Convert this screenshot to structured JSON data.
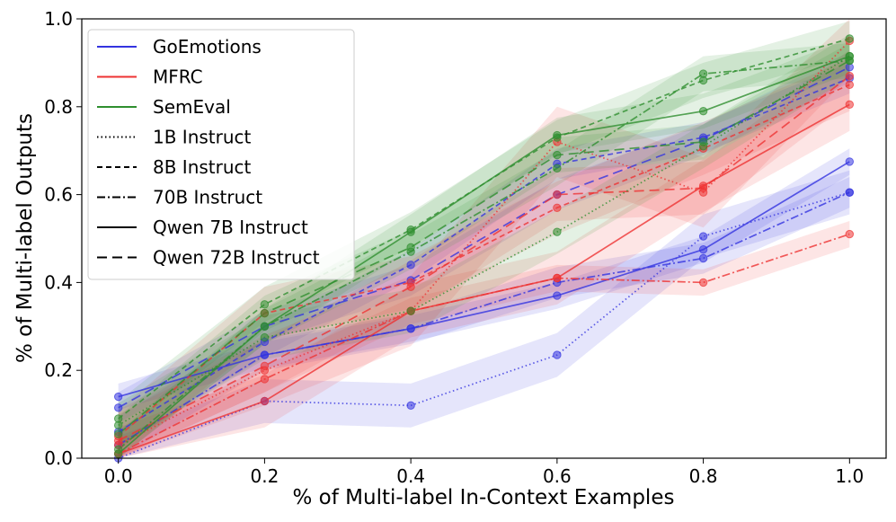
{
  "chart_data": {
    "type": "line",
    "xlabel": "% of Multi-label In-Context Examples",
    "ylabel": "% of Multi-label Outputs",
    "xlim": [
      -0.05,
      1.05
    ],
    "ylim": [
      0.0,
      1.0
    ],
    "xticks": [
      0.0,
      0.2,
      0.4,
      0.6,
      0.8,
      1.0
    ],
    "xtick_labels": [
      "0.0",
      "0.2",
      "0.4",
      "0.6",
      "0.8",
      "1.0"
    ],
    "yticks": [
      0.0,
      0.2,
      0.4,
      0.6,
      0.8,
      1.0
    ],
    "ytick_labels": [
      "0.0",
      "0.2",
      "0.4",
      "0.6",
      "0.8",
      "1.0"
    ],
    "grid": false,
    "legend_position": "top-left",
    "colors": {
      "GoEmotions": "#3434e0",
      "MFRC": "#ee3333",
      "SemEval": "#2f8f2f"
    },
    "legend": [
      {
        "label": "GoEmotions",
        "color": "#3434e0",
        "style": "solid"
      },
      {
        "label": "MFRC",
        "color": "#ee3333",
        "style": "solid"
      },
      {
        "label": "SemEval",
        "color": "#2f8f2f",
        "style": "solid"
      },
      {
        "label": "1B Instruct",
        "color": "#000000",
        "style": "dotted"
      },
      {
        "label": "8B Instruct",
        "color": "#000000",
        "style": "dashed"
      },
      {
        "label": "70B Instruct",
        "color": "#000000",
        "style": "dashdot"
      },
      {
        "label": "Qwen 7B Instruct",
        "color": "#000000",
        "style": "solid"
      },
      {
        "label": "Qwen 72B Instruct",
        "color": "#000000",
        "style": "longdash"
      }
    ],
    "x": [
      0.0,
      0.2,
      0.4,
      0.6,
      0.8,
      1.0
    ],
    "series": [
      {
        "dataset": "GoEmotions",
        "model": "1B Instruct",
        "style": "dotted",
        "values": [
          0.0,
          0.13,
          0.12,
          0.235,
          0.505,
          0.605
        ],
        "band": 0.05
      },
      {
        "dataset": "GoEmotions",
        "model": "8B Instruct",
        "style": "dashed",
        "values": [
          0.06,
          0.265,
          0.44,
          0.67,
          0.73,
          0.865
        ],
        "band": 0.035
      },
      {
        "dataset": "GoEmotions",
        "model": "70B Instruct",
        "style": "dashdot",
        "values": [
          0.03,
          0.235,
          0.295,
          0.4,
          0.455,
          0.605
        ],
        "band": 0.035
      },
      {
        "dataset": "GoEmotions",
        "model": "Qwen 7B Instruct",
        "style": "solid",
        "values": [
          0.14,
          0.235,
          0.295,
          0.37,
          0.475,
          0.675
        ],
        "band": 0.03
      },
      {
        "dataset": "GoEmotions",
        "model": "Qwen 72B Instruct",
        "style": "longdash",
        "values": [
          0.115,
          0.3,
          0.405,
          0.6,
          0.725,
          0.89
        ],
        "band": 0.035
      },
      {
        "dataset": "MFRC",
        "model": "1B Instruct",
        "style": "dotted",
        "values": [
          0.03,
          0.2,
          0.335,
          0.72,
          0.605,
          0.95
        ],
        "band": 0.08
      },
      {
        "dataset": "MFRC",
        "model": "8B Instruct",
        "style": "dashed",
        "values": [
          0.05,
          0.33,
          0.4,
          0.57,
          0.705,
          0.85
        ],
        "band": 0.06
      },
      {
        "dataset": "MFRC",
        "model": "70B Instruct",
        "style": "dashdot",
        "values": [
          0.01,
          0.18,
          0.335,
          0.41,
          0.4,
          0.51
        ],
        "band": 0.03
      },
      {
        "dataset": "MFRC",
        "model": "Qwen 7B Instruct",
        "style": "solid",
        "values": [
          0.01,
          0.13,
          0.335,
          0.41,
          0.62,
          0.805
        ],
        "band": 0.06
      },
      {
        "dataset": "MFRC",
        "model": "Qwen 72B Instruct",
        "style": "longdash",
        "values": [
          0.04,
          0.21,
          0.39,
          0.6,
          0.615,
          0.87
        ],
        "band": 0.06
      },
      {
        "dataset": "SemEval",
        "model": "1B Instruct",
        "style": "dotted",
        "values": [
          0.075,
          0.275,
          0.335,
          0.515,
          0.71,
          0.915
        ],
        "band": 0.05
      },
      {
        "dataset": "SemEval",
        "model": "8B Instruct",
        "style": "dashed",
        "values": [
          0.09,
          0.35,
          0.52,
          0.73,
          0.86,
          0.955
        ],
        "band": 0.04
      },
      {
        "dataset": "SemEval",
        "model": "70B Instruct",
        "style": "dashdot",
        "values": [
          0.02,
          0.3,
          0.47,
          0.66,
          0.875,
          0.905
        ],
        "band": 0.04
      },
      {
        "dataset": "SemEval",
        "model": "Qwen 7B Instruct",
        "style": "solid",
        "values": [
          0.01,
          0.3,
          0.515,
          0.735,
          0.79,
          0.915
        ],
        "band": 0.04
      },
      {
        "dataset": "SemEval",
        "model": "Qwen 72B Instruct",
        "style": "longdash",
        "values": [
          0.055,
          0.33,
          0.48,
          0.69,
          0.72,
          0.905
        ],
        "band": 0.04
      }
    ]
  }
}
